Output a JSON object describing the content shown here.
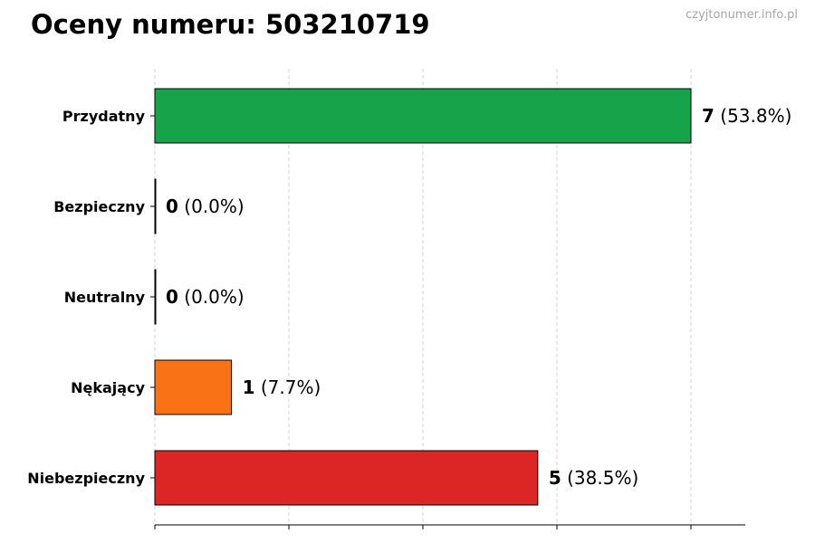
{
  "page": {
    "title": "Oceny numeru: 503210719",
    "watermark": "czyjtonumer.info.pl"
  },
  "chart_data": {
    "type": "bar",
    "orientation": "horizontal",
    "title": "Oceny numeru: 503210719",
    "categories": [
      "Przydatny",
      "Bezpieczny",
      "Neutralny",
      "Nękający",
      "Niebezpieczny"
    ],
    "values": [
      7,
      0,
      0,
      1,
      5
    ],
    "value_labels": [
      "7",
      "0",
      "0",
      "1",
      "5"
    ],
    "percent_labels": [
      "(53.8%)",
      "(0.0%)",
      "(0.0%)",
      "(7.7%)",
      "(38.5%)"
    ],
    "colors": [
      "#16a34a",
      "#000000",
      "#000000",
      "#f97316",
      "#dc2626"
    ],
    "xlim": [
      0,
      7.7
    ],
    "x_gridlines": [
      0,
      1.75,
      3.5,
      5.25,
      7
    ],
    "grid": "vertical-dashed",
    "xlabel": "",
    "ylabel": ""
  }
}
